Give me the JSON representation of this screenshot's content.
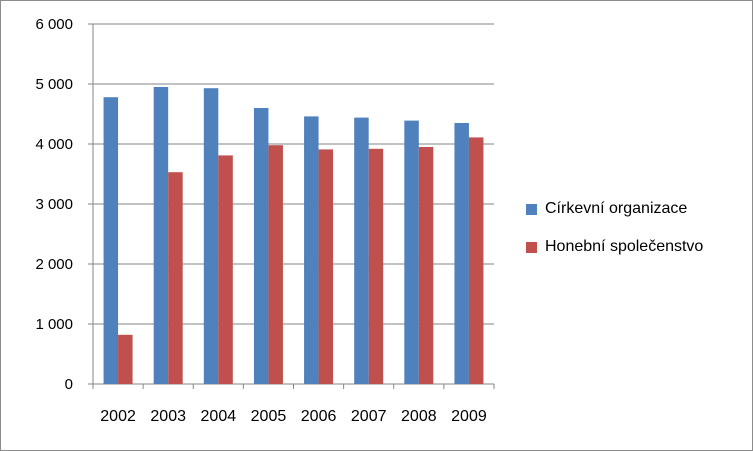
{
  "chart_data": {
    "type": "bar",
    "categories": [
      "2002",
      "2003",
      "2004",
      "2005",
      "2006",
      "2007",
      "2008",
      "2009"
    ],
    "series": [
      {
        "name": "Církevní organizace",
        "color": "#4f81bd",
        "values": [
          4780,
          4950,
          4930,
          4600,
          4460,
          4440,
          4390,
          4350
        ]
      },
      {
        "name": "Honební společenstvo",
        "color": "#c0504d",
        "values": [
          820,
          3530,
          3810,
          3980,
          3910,
          3920,
          3950,
          4110
        ]
      }
    ],
    "ylim": [
      0,
      6000
    ],
    "yticks": [
      "0",
      "1 000",
      "2 000",
      "3 000",
      "4 000",
      "5 000",
      "6 000"
    ],
    "ytick_values": [
      0,
      1000,
      2000,
      3000,
      4000,
      5000,
      6000
    ],
    "grid": true,
    "legend": "right"
  }
}
